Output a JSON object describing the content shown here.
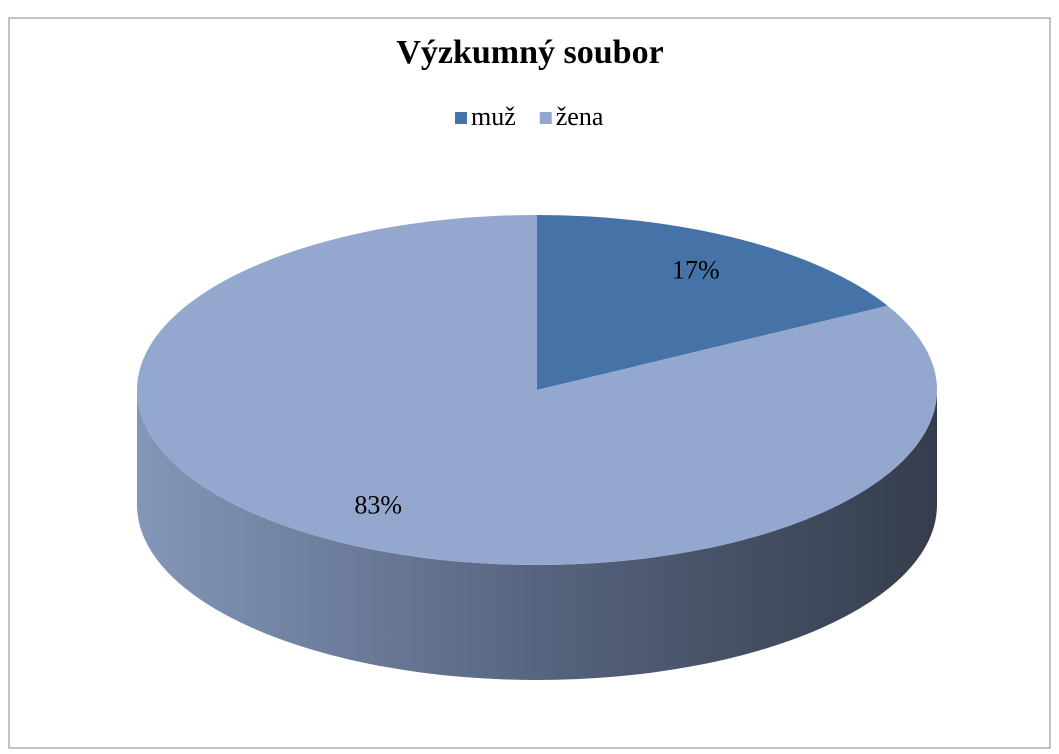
{
  "chart_data": {
    "type": "pie",
    "title": "Výzkumný soubor",
    "categories": [
      "muž",
      "žena"
    ],
    "values": [
      17,
      83
    ],
    "value_labels": [
      "17%",
      "83%"
    ],
    "colors": [
      "#4572a7",
      "#94a7cf"
    ],
    "legend": "top"
  }
}
